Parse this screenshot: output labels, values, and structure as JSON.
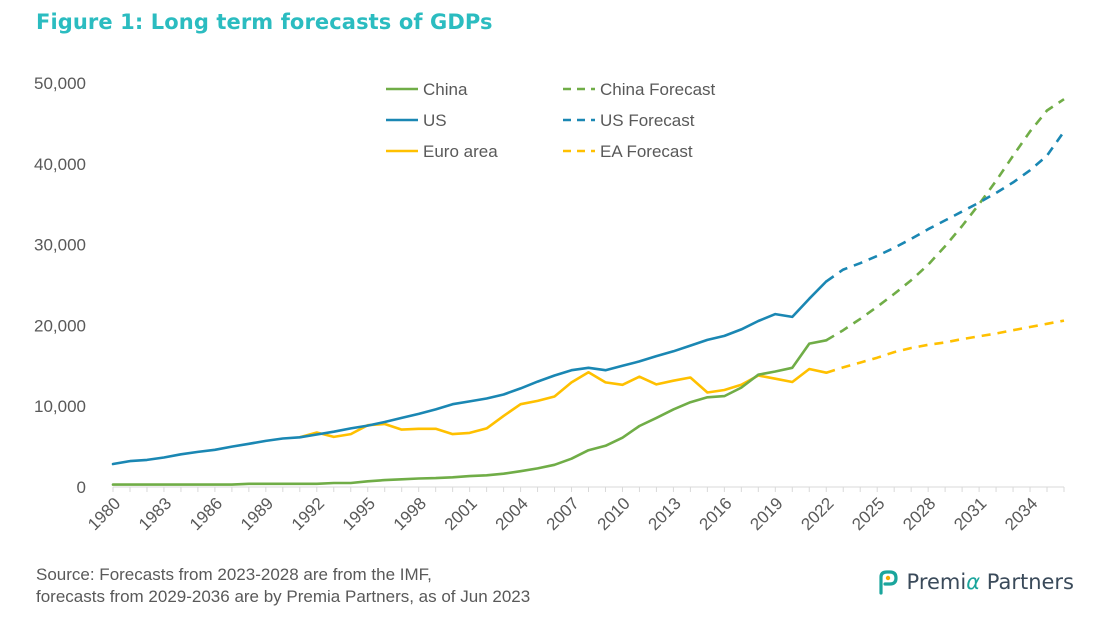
{
  "title": "Figure 1: Long term forecasts of GDPs",
  "source_lines": [
    "Source: Forecasts from 2023-2028 are from the IMF,",
    "forecasts from 2029-2036 are by Premia Partners, as of Jun 2023"
  ],
  "brand": {
    "name_prefix": "Premi",
    "name_accent": "α",
    "name_suffix": " Partners"
  },
  "colors": {
    "china": "#70ad47",
    "us": "#1a87b3",
    "euro": "#ffc000",
    "title": "#2bbcc0",
    "axis_text": "#595959"
  },
  "chart_data": {
    "type": "line",
    "ylim": [
      0,
      50000
    ],
    "yticks": [
      0,
      10000,
      20000,
      30000,
      40000,
      50000
    ],
    "ytick_labels": [
      "0",
      "10,000",
      "20,000",
      "30,000",
      "40,000",
      "50,000"
    ],
    "xlim": [
      1980,
      2036
    ],
    "xticks": [
      1980,
      1983,
      1986,
      1989,
      1992,
      1995,
      1998,
      2001,
      2004,
      2007,
      2010,
      2013,
      2016,
      2019,
      2022,
      2025,
      2028,
      2031,
      2034
    ],
    "grid": false,
    "legend_position": "top-center",
    "legend": [
      {
        "label": "China",
        "series": "china"
      },
      {
        "label": "China Forecast",
        "series": "china_forecast"
      },
      {
        "label": "US",
        "series": "us"
      },
      {
        "label": "US Forecast",
        "series": "us_forecast"
      },
      {
        "label": "Euro area",
        "series": "euro"
      },
      {
        "label": "EA Forecast",
        "series": "ea_forecast"
      }
    ],
    "series": [
      {
        "id": "china",
        "name": "China",
        "color": "#70ad47",
        "dashed": false,
        "x": [
          1980,
          1981,
          1982,
          1983,
          1984,
          1985,
          1986,
          1987,
          1988,
          1989,
          1990,
          1991,
          1992,
          1993,
          1994,
          1995,
          1996,
          1997,
          1998,
          1999,
          2000,
          2001,
          2002,
          2003,
          2004,
          2005,
          2006,
          2007,
          2008,
          2009,
          2010,
          2011,
          2012,
          2013,
          2014,
          2015,
          2016,
          2017,
          2018,
          2019,
          2020,
          2021,
          2022
        ],
        "y": [
          300,
          300,
          300,
          300,
          300,
          300,
          300,
          300,
          400,
          400,
          400,
          400,
          400,
          500,
          500,
          700,
          850,
          950,
          1050,
          1100,
          1200,
          1350,
          1450,
          1650,
          1950,
          2300,
          2750,
          3500,
          4550,
          5100,
          6100,
          7550,
          8550,
          9600,
          10500,
          11100,
          11250,
          12300,
          13900,
          14300,
          14750,
          17750,
          18150
        ]
      },
      {
        "id": "us",
        "name": "US",
        "color": "#1a87b3",
        "dashed": false,
        "x": [
          1980,
          1981,
          1982,
          1983,
          1984,
          1985,
          1986,
          1987,
          1988,
          1989,
          1990,
          1991,
          1992,
          1993,
          1994,
          1995,
          1996,
          1997,
          1998,
          1999,
          2000,
          2001,
          2002,
          2003,
          2004,
          2005,
          2006,
          2007,
          2008,
          2009,
          2010,
          2011,
          2012,
          2013,
          2014,
          2015,
          2016,
          2017,
          2018,
          2019,
          2020,
          2021,
          2022
        ],
        "y": [
          2850,
          3200,
          3350,
          3650,
          4050,
          4350,
          4600,
          5000,
          5350,
          5700,
          6000,
          6150,
          6500,
          6850,
          7250,
          7600,
          8050,
          8550,
          9050,
          9600,
          10250,
          10600,
          10950,
          11450,
          12200,
          13050,
          13800,
          14450,
          14750,
          14450,
          15000,
          15550,
          16200,
          16800,
          17500,
          18200,
          18700,
          19500,
          20550,
          21400,
          21050,
          23300,
          25450
        ]
      },
      {
        "id": "euro",
        "name": "Euro area",
        "color": "#ffc000",
        "dashed": false,
        "x": [
          1991,
          1992,
          1993,
          1994,
          1995,
          1996,
          1997,
          1998,
          1999,
          2000,
          2001,
          2002,
          2003,
          2004,
          2005,
          2006,
          2007,
          2008,
          2009,
          2010,
          2011,
          2012,
          2013,
          2014,
          2015,
          2016,
          2017,
          2018,
          2019,
          2020,
          2021,
          2022
        ],
        "y": [
          6150,
          6750,
          6200,
          6550,
          7650,
          7800,
          7100,
          7200,
          7200,
          6550,
          6700,
          7250,
          8800,
          10250,
          10650,
          11200,
          12950,
          14200,
          12950,
          12650,
          13650,
          12700,
          13150,
          13550,
          11700,
          12000,
          12650,
          13800,
          13400,
          13000,
          14600,
          14150
        ]
      },
      {
        "id": "china_forecast",
        "name": "China Forecast",
        "color": "#70ad47",
        "dashed": true,
        "x": [
          2022,
          2023,
          2024,
          2025,
          2026,
          2027,
          2028,
          2029,
          2030,
          2031,
          2032,
          2033,
          2034,
          2035,
          2036
        ],
        "y": [
          18150,
          19400,
          20800,
          22300,
          23900,
          25600,
          27500,
          29800,
          32300,
          35000,
          37900,
          41000,
          44000,
          46600,
          48000
        ]
      },
      {
        "id": "us_forecast",
        "name": "US Forecast",
        "color": "#1a87b3",
        "dashed": true,
        "x": [
          2022,
          2023,
          2024,
          2025,
          2026,
          2027,
          2028,
          2029,
          2030,
          2031,
          2032,
          2033,
          2034,
          2035,
          2036
        ],
        "y": [
          25450,
          26900,
          27700,
          28600,
          29600,
          30700,
          31900,
          33000,
          34100,
          35200,
          36400,
          37700,
          39200,
          41000,
          44000
        ]
      },
      {
        "id": "ea_forecast",
        "name": "EA Forecast",
        "color": "#ffc000",
        "dashed": true,
        "x": [
          2022,
          2023,
          2024,
          2025,
          2026,
          2027,
          2028,
          2029,
          2030,
          2031,
          2032,
          2033,
          2034,
          2035,
          2036
        ],
        "y": [
          14150,
          14800,
          15400,
          16000,
          16700,
          17200,
          17600,
          17900,
          18300,
          18650,
          19000,
          19400,
          19800,
          20200,
          20600
        ]
      }
    ]
  }
}
